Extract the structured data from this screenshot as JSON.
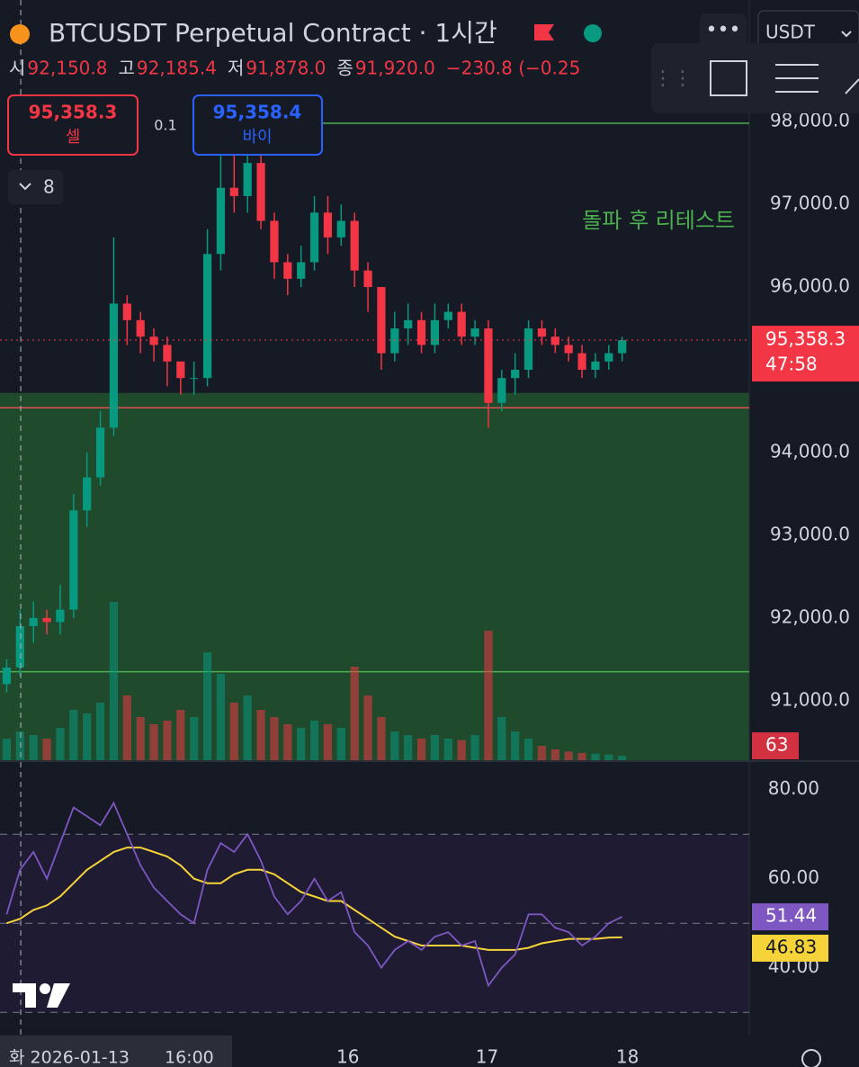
{
  "chart_data": {
    "type": "candlestick",
    "open": [
      91200,
      91400,
      91900,
      92000,
      91950,
      92100,
      93300,
      93700,
      94300,
      95800,
      95600,
      95400,
      95300,
      95100,
      94900,
      94900,
      96400,
      97200,
      97100,
      97500,
      96800,
      96300,
      96100,
      96300,
      96900,
      96600,
      96800,
      96200,
      96000,
      95200,
      95500,
      95600,
      95300,
      95600,
      95700,
      95400,
      95500,
      94600,
      94900,
      95000,
      95500,
      95400,
      95300,
      95200,
      95000,
      95100,
      95200
    ],
    "high": [
      91500,
      92100,
      92200,
      92100,
      92400,
      93500,
      94000,
      94500,
      96600,
      95900,
      95700,
      95500,
      95400,
      95100,
      95100,
      96700,
      97700,
      97600,
      97800,
      97600,
      96900,
      96400,
      96500,
      97100,
      97100,
      97000,
      96900,
      96300,
      96000,
      95700,
      95800,
      95700,
      95800,
      95800,
      95800,
      95600,
      95600,
      95000,
      95200,
      95600,
      95600,
      95500,
      95400,
      95300,
      95200,
      95300,
      95400
    ],
    "low": [
      91100,
      91300,
      91700,
      91800,
      91800,
      92000,
      93100,
      93600,
      94200,
      95300,
      95200,
      95100,
      94800,
      94700,
      94700,
      94800,
      96200,
      96900,
      96900,
      96700,
      96100,
      95900,
      96000,
      96200,
      96400,
      96500,
      96000,
      95700,
      95000,
      95100,
      95300,
      95200,
      95200,
      95500,
      95300,
      95300,
      94300,
      94500,
      94700,
      94900,
      95300,
      95200,
      95100,
      94900,
      94900,
      95000,
      95100
    ],
    "close": [
      91400,
      91900,
      92000,
      91950,
      92100,
      93300,
      93700,
      94300,
      95800,
      95600,
      95400,
      95300,
      95100,
      94900,
      94900,
      96400,
      97200,
      97100,
      97500,
      96800,
      96300,
      96100,
      96300,
      96900,
      96600,
      96800,
      96200,
      96000,
      95200,
      95500,
      95600,
      95300,
      95600,
      95700,
      95400,
      95500,
      94600,
      94900,
      95000,
      95500,
      95400,
      95300,
      95200,
      95000,
      95100,
      95200,
      95358.3
    ],
    "up_color": "#089981",
    "down_color": "#f23645",
    "xlim": [
      -0.5,
      55.5
    ],
    "xticks": [
      {
        "value": 25.5,
        "label": "16"
      },
      {
        "value": 35.9,
        "label": "17"
      },
      {
        "value": 46.4,
        "label": "18"
      }
    ],
    "ylim": [
      90280,
      99470
    ],
    "yticks": [
      {
        "value": 98000,
        "label": "98,000.0"
      },
      {
        "value": 97000,
        "label": "97,000.0"
      },
      {
        "value": 96000,
        "label": "96,000.0"
      },
      {
        "value": 94000,
        "label": "94,000.0"
      },
      {
        "value": 93000,
        "label": "93,000.0"
      },
      {
        "value": 92000,
        "label": "92,000.0"
      },
      {
        "value": 91000,
        "label": "91,000.0"
      }
    ],
    "volume": {
      "values": [
        300,
        400,
        350,
        300,
        450,
        700,
        650,
        800,
        2200,
        900,
        600,
        500,
        550,
        700,
        600,
        1500,
        1200,
        800,
        900,
        700,
        600,
        500,
        450,
        550,
        500,
        450,
        1300,
        900,
        600,
        400,
        350,
        300,
        350,
        300,
        280,
        350,
        1800,
        600,
        400,
        300,
        200,
        150,
        120,
        100,
        90,
        80,
        63
      ],
      "ylim": [
        0,
        3000
      ]
    },
    "rsi": {
      "values": [
        52,
        62,
        66,
        60,
        68,
        76,
        74,
        72,
        77,
        70,
        63,
        58,
        55,
        52,
        50,
        62,
        68,
        66,
        70,
        64,
        56,
        52,
        55,
        60,
        55,
        57,
        48,
        45,
        40,
        44,
        46,
        44,
        47,
        48,
        45,
        46,
        36,
        40,
        43,
        52,
        52,
        49,
        48,
        45,
        47,
        50,
        51.44
      ],
      "ma": [
        50,
        51,
        53,
        54,
        56,
        59,
        62,
        64,
        66,
        67,
        67,
        66,
        65,
        63,
        60,
        59,
        59,
        61,
        62,
        62,
        61,
        59,
        57,
        56,
        55,
        55,
        53,
        51,
        49,
        47,
        46,
        45,
        45,
        45,
        45,
        44.5,
        44,
        44,
        44,
        44.5,
        45.5,
        46,
        46.5,
        46.5,
        46.5,
        46.8,
        46.83
      ],
      "color": "#7e57c2",
      "ma_color": "#f7d33a",
      "ylim": [
        25,
        86
      ],
      "yticks": [
        {
          "value": 80,
          "label": "80.00"
        },
        {
          "value": 60,
          "label": "60.00"
        },
        {
          "value": 40,
          "label": "40.00"
        }
      ],
      "bands": [
        70,
        50,
        30
      ]
    },
    "zone": {
      "top": 94720,
      "color": "#1f4a2c"
    },
    "levels": [
      {
        "value": 97980,
        "color": "#4caf50",
        "x0": 23.5
      },
      {
        "value": 94540,
        "color": "#e0524f",
        "x0": -0.5
      },
      {
        "value": 91350,
        "color": "#4caf50",
        "x0": -0.5
      }
    ],
    "crosshair_x": 1.05
  },
  "ui": {
    "title": "BTCUSDT Perpetual Contract · 1시간",
    "ohlc": [
      {
        "label": "시",
        "value": "92,150.8"
      },
      {
        "label": "고",
        "value": "92,185.4"
      },
      {
        "label": "저",
        "value": "91,878.0"
      },
      {
        "label": "종",
        "value": "91,920.0"
      }
    ],
    "change": "−230.8 (−0.25",
    "sell": {
      "price": "95,358.3",
      "label": "셀"
    },
    "buy": {
      "price": "95,358.4",
      "label": "바이"
    },
    "spread": "0.1",
    "indicators_count": "8",
    "currency": "USDT",
    "annotation": "돌파 후 리테스트",
    "crosshair_date": "화 2026-01-13",
    "crosshair_time": "16:00",
    "last_price_label": "95,358.3",
    "countdown": "47:58",
    "volume_label": "63",
    "rsi_label": "51.44",
    "rsi_ma_label": "46.83"
  }
}
